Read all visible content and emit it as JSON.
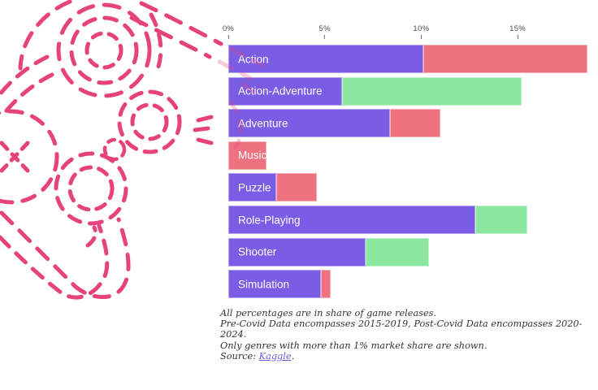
{
  "colors": {
    "bar_base": "#7b5ce4",
    "bar_decline": "#ed717f",
    "bar_growth": "#8ce8a0",
    "doodle_pink": "#e6427c",
    "link": "#6b5cdf",
    "axis_text": "#4d4d4d",
    "footnote_text": "#333333",
    "bar_label_text": "#ffffff"
  },
  "chart_data": {
    "type": "bar",
    "orientation": "horizontal",
    "title": "",
    "x_axis": {
      "tick_labels": [
        "0%",
        "5%",
        "10%",
        "15%"
      ],
      "tick_values": [
        0,
        5,
        10,
        15
      ],
      "unit": "percent share of game releases",
      "range": [
        0,
        19.2
      ],
      "grid": false
    },
    "categories": [
      "Action",
      "Action-Adventure",
      "Adventure",
      "Music",
      "Puzzle",
      "Role-Playing",
      "Shooter",
      "Simulation"
    ],
    "bars": [
      {
        "label": "Action",
        "base_pct": 10.1,
        "delta_pct": 8.5,
        "delta_type": "decline",
        "total_pct": 18.6
      },
      {
        "label": "Action-Adventure",
        "base_pct": 5.9,
        "delta_pct": 9.3,
        "delta_type": "growth",
        "total_pct": 15.2
      },
      {
        "label": "Adventure",
        "base_pct": 8.4,
        "delta_pct": 2.6,
        "delta_type": "decline",
        "total_pct": 11.0
      },
      {
        "label": "Music",
        "base_pct": 0,
        "delta_pct": 2.0,
        "delta_type": "decline",
        "total_pct": 2.0
      },
      {
        "label": "Puzzle",
        "base_pct": 2.5,
        "delta_pct": 2.1,
        "delta_type": "decline",
        "total_pct": 4.6
      },
      {
        "label": "Role-Playing",
        "base_pct": 12.8,
        "delta_pct": 2.7,
        "delta_type": "growth",
        "total_pct": 15.5
      },
      {
        "label": "Shooter",
        "base_pct": 7.1,
        "delta_pct": 3.3,
        "delta_type": "growth",
        "total_pct": 10.4
      },
      {
        "label": "Simulation",
        "base_pct": 4.8,
        "delta_pct": 0.5,
        "delta_type": "decline",
        "total_pct": 5.3
      }
    ],
    "segment_colors": {
      "base": "#7b5ce4",
      "decline": "#ed717f",
      "growth": "#8ce8a0"
    },
    "legend": null
  },
  "footnote": {
    "lines": [
      "All percentages are in share of game releases.",
      "Pre-Covid Data encompasses 2015-2019, Post-Covid Data encompasses 2020-2024.",
      "Only genres with more than 1% market share are shown."
    ],
    "source_prefix": "Source: ",
    "source_link": "Kaggle",
    "source_suffix": "."
  }
}
